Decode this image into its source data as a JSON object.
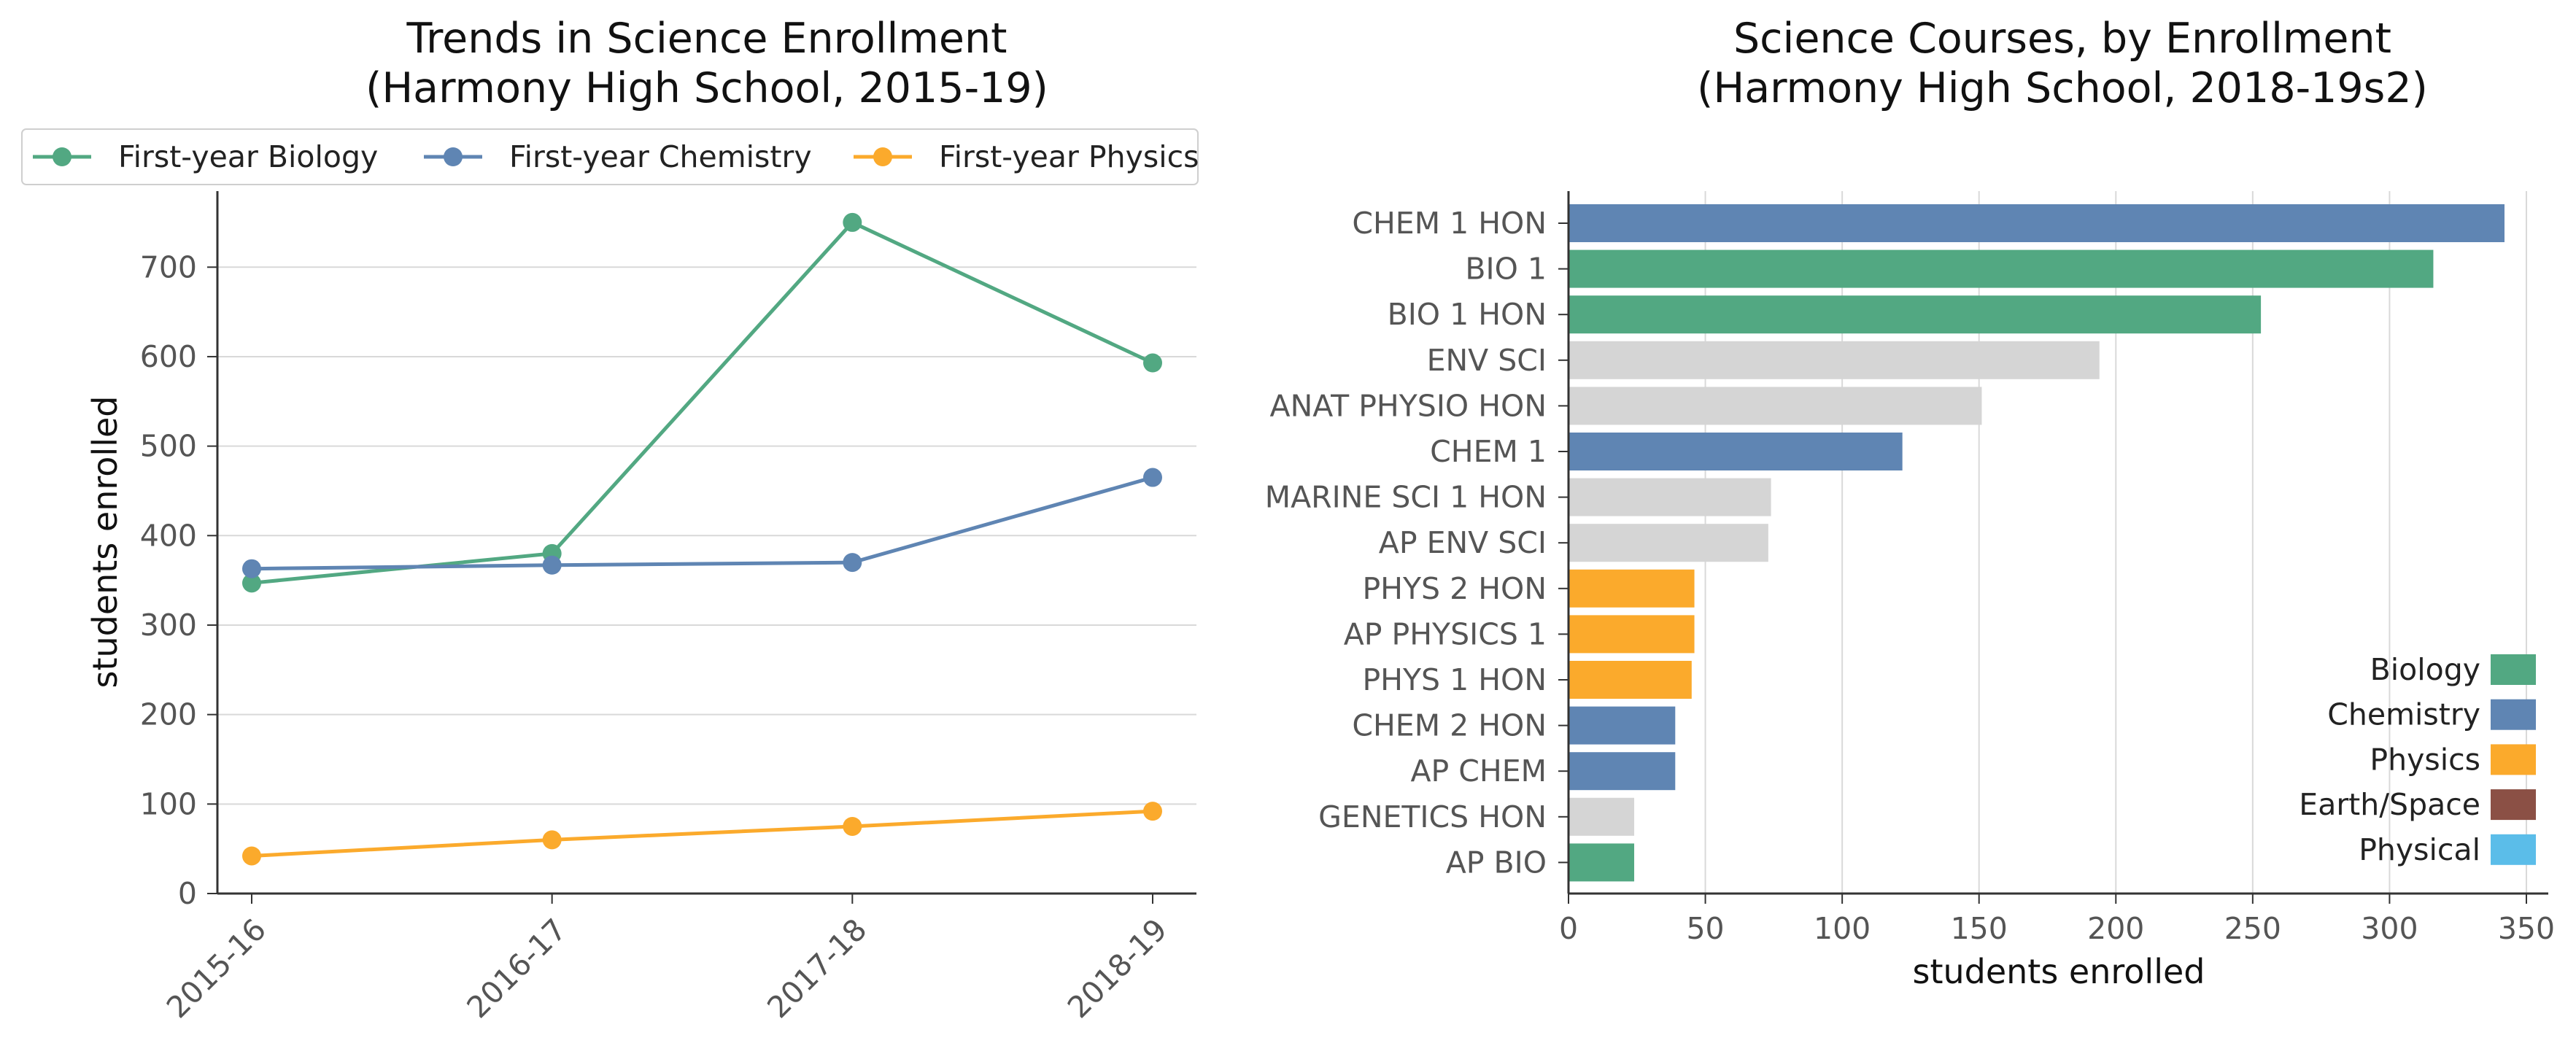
{
  "chart_data": [
    {
      "type": "line",
      "title": "Trends in Science Enrollment\n(Harmony High School, 2015-19)",
      "xlabel": "",
      "ylabel": "students enrolled",
      "categories": [
        "2015-16",
        "2016-17",
        "2017-18",
        "2018-19"
      ],
      "series": [
        {
          "name": "First-year Biology",
          "color": "#52a882",
          "values": [
            347,
            380,
            750,
            593
          ]
        },
        {
          "name": "First-year Chemistry",
          "color": "#5f85b3",
          "values": [
            363,
            367,
            370,
            465
          ]
        },
        {
          "name": "First-year Physics",
          "color": "#fbaa2c",
          "values": [
            42,
            60,
            75,
            92
          ]
        }
      ],
      "ylim": [
        0,
        785
      ],
      "yticks": [
        0,
        100,
        200,
        300,
        400,
        500,
        600,
        700
      ],
      "grid": "horizontal",
      "legend": "top"
    },
    {
      "type": "bar",
      "orientation": "horizontal",
      "title": "Science Courses, by Enrollment\n(Harmony High School, 2018-19s2)",
      "xlabel": "students enrolled",
      "ylabel": "",
      "categories": [
        "CHEM 1 HON",
        "BIO 1",
        "BIO 1 HON",
        "ENV SCI",
        "ANAT PHYSIO HON",
        "CHEM 1",
        "MARINE SCI 1 HON",
        "AP ENV SCI",
        "PHYS 2 HON",
        "AP PHYSICS 1",
        "PHYS 1 HON",
        "CHEM 2 HON",
        "AP CHEM",
        "GENETICS HON",
        "AP BIO"
      ],
      "values": [
        342,
        316,
        253,
        194,
        151,
        122,
        74,
        73,
        46,
        46,
        45,
        39,
        39,
        24,
        24
      ],
      "subject": [
        "Chemistry",
        "Biology",
        "Biology",
        "Other",
        "Other",
        "Chemistry",
        "Other",
        "Other",
        "Physics",
        "Physics",
        "Physics",
        "Chemistry",
        "Chemistry",
        "Other",
        "Biology"
      ],
      "xlim": [
        0,
        358
      ],
      "xticks": [
        0,
        50,
        100,
        150,
        200,
        250,
        300,
        350
      ],
      "grid": "vertical",
      "legend": "bottom-right",
      "legend_entries": [
        {
          "name": "Biology",
          "color": "#52a882"
        },
        {
          "name": "Chemistry",
          "color": "#5f85b3"
        },
        {
          "name": "Physics",
          "color": "#fbaa2c"
        },
        {
          "name": "Earth/Space",
          "color": "#8b5045"
        },
        {
          "name": "Physical",
          "color": "#5bbde9"
        }
      ],
      "other_color": "#d5d5d5"
    }
  ]
}
